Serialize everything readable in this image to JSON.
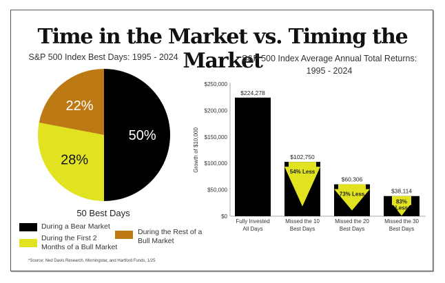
{
  "title": "Time in the Market vs. Timing the Market",
  "pie_subtitle": "S&P 500 Index Best Days: 1995 - 2024",
  "bar_subtitle_line1": "S&P 500 Index Average Annual Total Returns:",
  "bar_subtitle_line2": "1995 - 2024",
  "pie_caption": "50 Best Days",
  "legend": [
    {
      "label": "During a Bear Market",
      "color": "#000000"
    },
    {
      "label_line1": "During the First 2",
      "label_line2": "Months of a Bull Market",
      "color": "#e1e320"
    },
    {
      "label_line1": "During the Rest of a",
      "label_line2": "Bull Market",
      "color": "#bd7a14"
    }
  ],
  "source": "*Source: Ned Davis Research, Morningstar, and Hartford Funds, 1/25",
  "chart_data": [
    {
      "type": "pie",
      "title": "S&P 500 Index Best Days: 1995 - 2024",
      "caption": "50 Best Days",
      "slices": [
        {
          "label": "During a Bear Market",
          "value": 50,
          "display": "50%",
          "color": "#000000",
          "text_color": "#ffffff"
        },
        {
          "label": "During the First 2 Months of a Bull Market",
          "value": 28,
          "display": "28%",
          "color": "#e1e320",
          "text_color": "#111111"
        },
        {
          "label": "During the Rest of a Bull Market",
          "value": 22,
          "display": "22%",
          "color": "#bd7a14",
          "text_color": "#ffffff"
        }
      ]
    },
    {
      "type": "bar",
      "title": "S&P 500 Index Average Annual Total Returns: 1995 - 2024",
      "ylabel": "Growth of $10,000",
      "xlabel": "",
      "ylim": [
        0,
        250000
      ],
      "yticks": [
        0,
        50000,
        100000,
        150000,
        200000,
        250000
      ],
      "ytick_labels": [
        "$0",
        "$50,000",
        "$100,000",
        "$150,000",
        "$200,000",
        "$250,000"
      ],
      "grid": false,
      "bar_color": "#000000",
      "arrow_color": "#e1e320",
      "categories": [
        [
          "Fully Invested",
          "All Days"
        ],
        [
          "Missed the 10",
          "Best Days"
        ],
        [
          "Missed the 20",
          "Best Days"
        ],
        [
          "Missed the 30",
          "Best Days"
        ]
      ],
      "values": [
        224278,
        102750,
        60306,
        38114
      ],
      "value_labels": [
        "$224,278",
        "$102,750",
        "$60,306",
        "$38,114"
      ],
      "annotations": [
        null,
        [
          "54% Less"
        ],
        [
          "73% Less"
        ],
        [
          "83%",
          "Less"
        ]
      ]
    }
  ]
}
